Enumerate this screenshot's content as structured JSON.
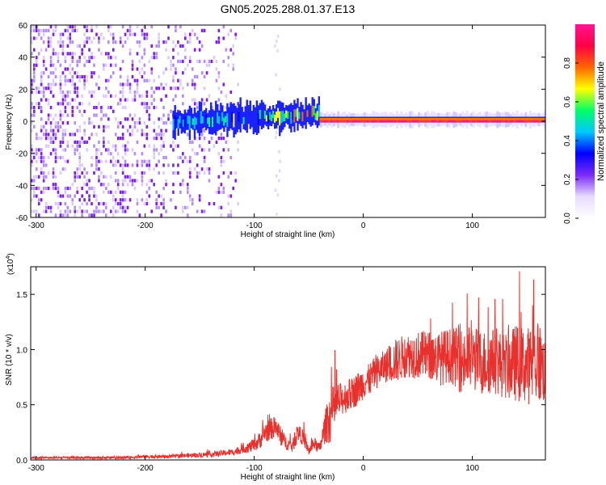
{
  "title": "GN05.2025.288.01.37.E13",
  "colors": {
    "snr_line": "#e8302c",
    "spectrogram_sparse": "#7a1ff0",
    "colorbar_stops": [
      "#ffffff",
      "#e8dcff",
      "#7b2cf5",
      "#0000ff",
      "#00c8ff",
      "#00ff66",
      "#ffff00",
      "#ff6600",
      "#ff0044",
      "#ff1493"
    ]
  },
  "chart_data": [
    {
      "type": "heatmap",
      "title": "GN05.2025.288.01.37.E13",
      "xlabel": "Height of straight line (km)",
      "ylabel": "Frequency (Hz)",
      "xlim": [
        -305,
        167
      ],
      "ylim": [
        -60,
        60
      ],
      "xticks": [
        -300,
        -200,
        -100,
        0,
        100
      ],
      "xtick_labels": [
        "-300",
        "-200",
        "-100",
        "0",
        "100"
      ],
      "yticks": [
        -60,
        -40,
        -20,
        0,
        20,
        40,
        60
      ],
      "ytick_labels": [
        "-60",
        "-40",
        "-20",
        "0",
        "20",
        "40",
        "60"
      ],
      "colorbar": {
        "label": "Normalized spectral amplitude",
        "range": [
          0,
          1
        ],
        "ticks": [
          0.0,
          0.2,
          0.4,
          0.6,
          0.8
        ],
        "tick_labels": [
          "0.0",
          "0.2",
          "0.4",
          "0.6",
          "0.8"
        ]
      },
      "regions": [
        {
          "name": "sparse noise",
          "x_range": [
            -305,
            -115
          ],
          "freq_range": [
            -60,
            60
          ],
          "amplitude": 0.05
        },
        {
          "name": "isolated streak",
          "x_range": [
            -82,
            -76
          ],
          "freq_range": [
            -60,
            60
          ],
          "amplitude": 0.02
        },
        {
          "name": "developing signal",
          "x_range": [
            -175,
            -40
          ],
          "freq_center": [
            0,
            5
          ],
          "freq_width": 8,
          "amplitude": 0.3
        },
        {
          "name": "steady tone",
          "x_range": [
            -40,
            167
          ],
          "freq_center": [
            1,
            1
          ],
          "freq_width": 4,
          "amplitude": 1.0
        }
      ]
    },
    {
      "type": "line",
      "xlabel": "Height of straight line (km)",
      "ylabel": "SNR (10 * v/v)",
      "multiplier_label": "(x10",
      "multiplier_exp": "4",
      "multiplier_close": ")",
      "xlim": [
        -305,
        167
      ],
      "ylim": [
        0,
        1.75
      ],
      "xticks": [
        -300,
        -200,
        -100,
        0,
        100
      ],
      "xtick_labels": [
        "-300",
        "-200",
        "-100",
        "0",
        "100"
      ],
      "yticks": [
        0,
        0.5,
        1.0,
        1.5
      ],
      "ytick_labels": [
        "0.0",
        "0.5",
        "1.0",
        "1.5"
      ],
      "series": [
        {
          "name": "SNR",
          "x": [
            -305,
            -280,
            -250,
            -220,
            -200,
            -180,
            -160,
            -140,
            -120,
            -110,
            -100,
            -95,
            -90,
            -85,
            -80,
            -75,
            -70,
            -65,
            -60,
            -55,
            -50,
            -45,
            -40,
            -35,
            -30,
            -25,
            -20,
            -15,
            -10,
            -5,
            0,
            5,
            10,
            20,
            30,
            40,
            50,
            60,
            70,
            80,
            90,
            100,
            110,
            120,
            130,
            140,
            150,
            160,
            167
          ],
          "values": [
            0.02,
            0.02,
            0.02,
            0.02,
            0.03,
            0.03,
            0.04,
            0.05,
            0.07,
            0.1,
            0.13,
            0.18,
            0.25,
            0.28,
            0.3,
            0.2,
            0.15,
            0.12,
            0.25,
            0.2,
            0.08,
            0.15,
            0.1,
            0.3,
            0.4,
            0.5,
            0.55,
            0.58,
            0.6,
            0.65,
            0.7,
            0.72,
            0.78,
            0.85,
            0.9,
            0.95,
            0.95,
            0.95,
            0.92,
            0.95,
            0.9,
            0.92,
            0.88,
            0.9,
            0.85,
            0.88,
            0.85,
            0.9,
            0.8
          ],
          "noise": [
            0.01,
            0.01,
            0.012,
            0.012,
            0.015,
            0.015,
            0.02,
            0.025,
            0.03,
            0.04,
            0.06,
            0.08,
            0.1,
            0.1,
            0.1,
            0.08,
            0.06,
            0.06,
            0.08,
            0.07,
            0.04,
            0.06,
            0.05,
            0.15,
            0.25,
            0.2,
            0.15,
            0.15,
            0.15,
            0.15,
            0.15,
            0.15,
            0.15,
            0.15,
            0.2,
            0.2,
            0.22,
            0.22,
            0.25,
            0.25,
            0.3,
            0.3,
            0.3,
            0.3,
            0.3,
            0.35,
            0.35,
            0.4,
            0.3
          ]
        }
      ]
    }
  ]
}
